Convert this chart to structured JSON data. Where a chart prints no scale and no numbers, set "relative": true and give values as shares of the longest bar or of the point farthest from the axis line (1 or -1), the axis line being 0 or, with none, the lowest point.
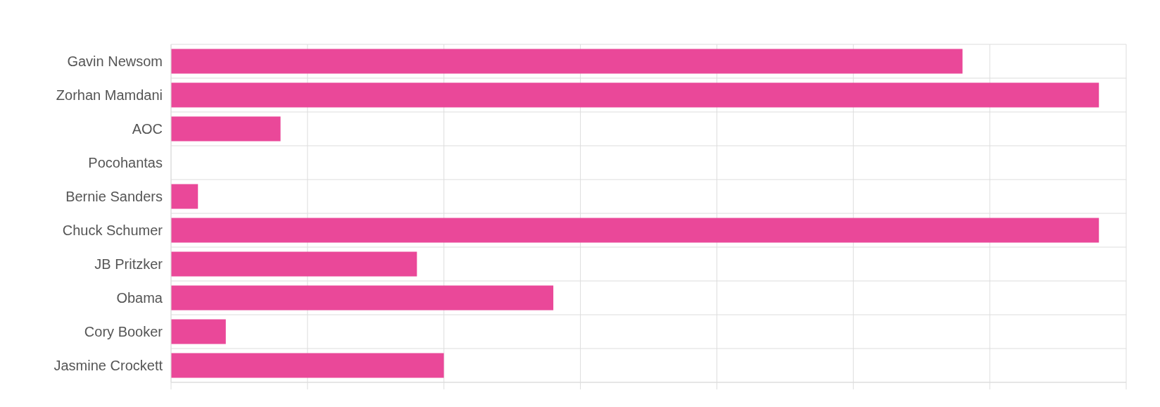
{
  "chart_data": {
    "type": "bar",
    "orientation": "horizontal",
    "relative": true,
    "grid": true,
    "categories": [
      "Gavin Newsom",
      "Zorhan Mamdani",
      "AOC",
      "Pocohantas",
      "Bernie Sanders",
      "Chuck Schumer",
      "JB Pritzker",
      "Obama",
      "Cory Booker",
      "Jasmine Crockett"
    ],
    "values": [
      0.853,
      1,
      0.118,
      0,
      0.029,
      1,
      0.265,
      0.412,
      0.059,
      0.294
    ],
    "color": "#ea4899"
  }
}
